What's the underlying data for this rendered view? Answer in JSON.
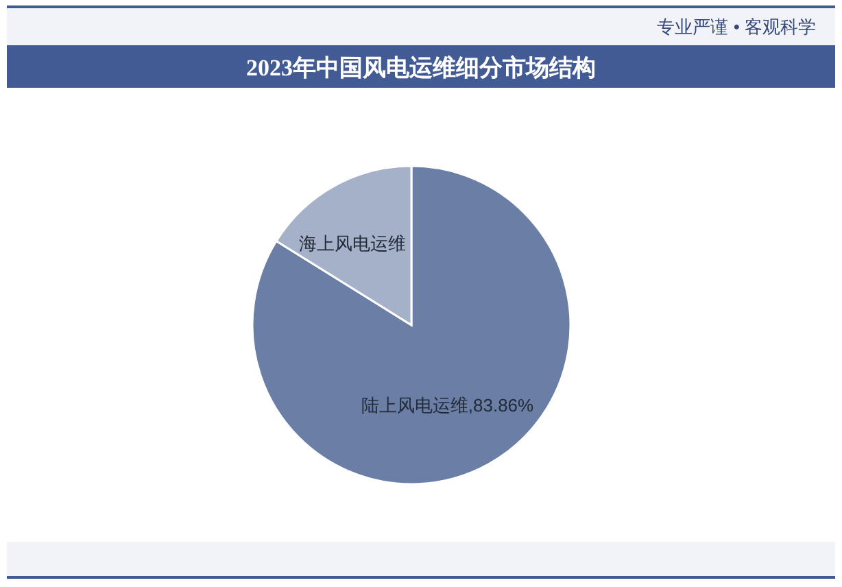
{
  "chart_data": {
    "type": "pie",
    "title": "2023年中国风电运维细分市场结构",
    "annotations": [
      "专业严谨 • 客观科学"
    ],
    "categories": [
      "陆上风电运维",
      "海上风电运维"
    ],
    "values": [
      83.86,
      16.14
    ],
    "colors": [
      "#6a7ea6",
      "#a5b0c9"
    ],
    "value_labels": [
      "83.86%",
      null
    ]
  }
}
